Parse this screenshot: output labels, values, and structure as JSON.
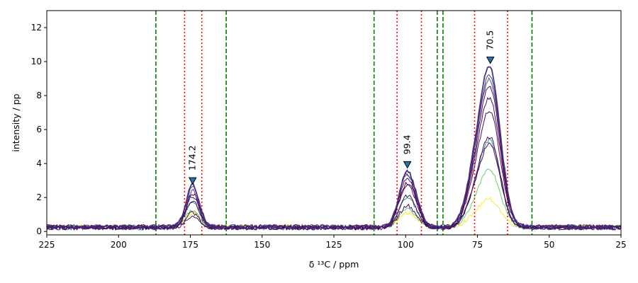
{
  "chart_data": {
    "type": "line",
    "title": "",
    "xlabel": "δ ¹³C / ppm",
    "ylabel": "intensity / pp",
    "xlim": [
      225,
      25
    ],
    "ylim": [
      -0.2,
      13
    ],
    "x_reversed": true,
    "xticks": [
      225,
      200,
      175,
      150,
      125,
      100,
      75,
      50,
      25
    ],
    "yticks": [
      0,
      2,
      4,
      6,
      8,
      10,
      12
    ],
    "xtick_labels": [
      "225",
      "200",
      "175",
      "150",
      "125",
      "100",
      "75",
      "50",
      "25"
    ],
    "ytick_labels": [
      "0",
      "2",
      "4",
      "6",
      "8",
      "10",
      "12"
    ],
    "grid": false,
    "legend": "none",
    "green_dashed_lines": [
      187,
      162.5,
      111,
      89,
      87,
      56
    ],
    "red_dotted_lines": [
      177,
      171,
      103,
      94.5,
      76,
      64.5
    ],
    "peak_labels": [
      {
        "x": 174.2,
        "y": 3.0,
        "label": "174.2"
      },
      {
        "x": 99.4,
        "y": 3.95,
        "label": "99.4"
      },
      {
        "x": 70.5,
        "y": 10.1,
        "label": "70.5"
      }
    ],
    "series_peak_heights": [
      {
        "color": "#fde725",
        "peak_174": 0.8,
        "peak_99": 0.8,
        "peak_70": 1.6
      },
      {
        "color": "#5ec962",
        "peak_174": 1.0,
        "peak_99": 1.1,
        "peak_70": 3.4
      },
      {
        "color": "#21918c",
        "peak_174": 1.6,
        "peak_99": 1.9,
        "peak_70": 5.2
      },
      {
        "color": "#3b528b",
        "peak_174": 2.3,
        "peak_99": 3.1,
        "peak_70": 8.7
      },
      {
        "color": "#440154",
        "peak_174": 0.6,
        "peak_99": 1.3,
        "peak_70": 4.9
      },
      {
        "color": "#440154",
        "peak_174": 0.9,
        "peak_99": 2.0,
        "peak_70": 5.4
      },
      {
        "color": "#440154",
        "peak_174": 1.5,
        "peak_99": 2.5,
        "peak_70": 7.6
      },
      {
        "color": "#440154",
        "peak_174": 1.8,
        "peak_99": 2.7,
        "peak_70": 6.9
      },
      {
        "color": "#440154",
        "peak_174": 2.0,
        "peak_99": 3.0,
        "peak_70": 8.4
      },
      {
        "color": "#472d7b",
        "peak_174": 2.1,
        "peak_99": 3.2,
        "peak_70": 9.0
      },
      {
        "color": "#482878",
        "peak_174": 2.5,
        "peak_99": 3.4,
        "peak_70": 9.5
      }
    ]
  }
}
